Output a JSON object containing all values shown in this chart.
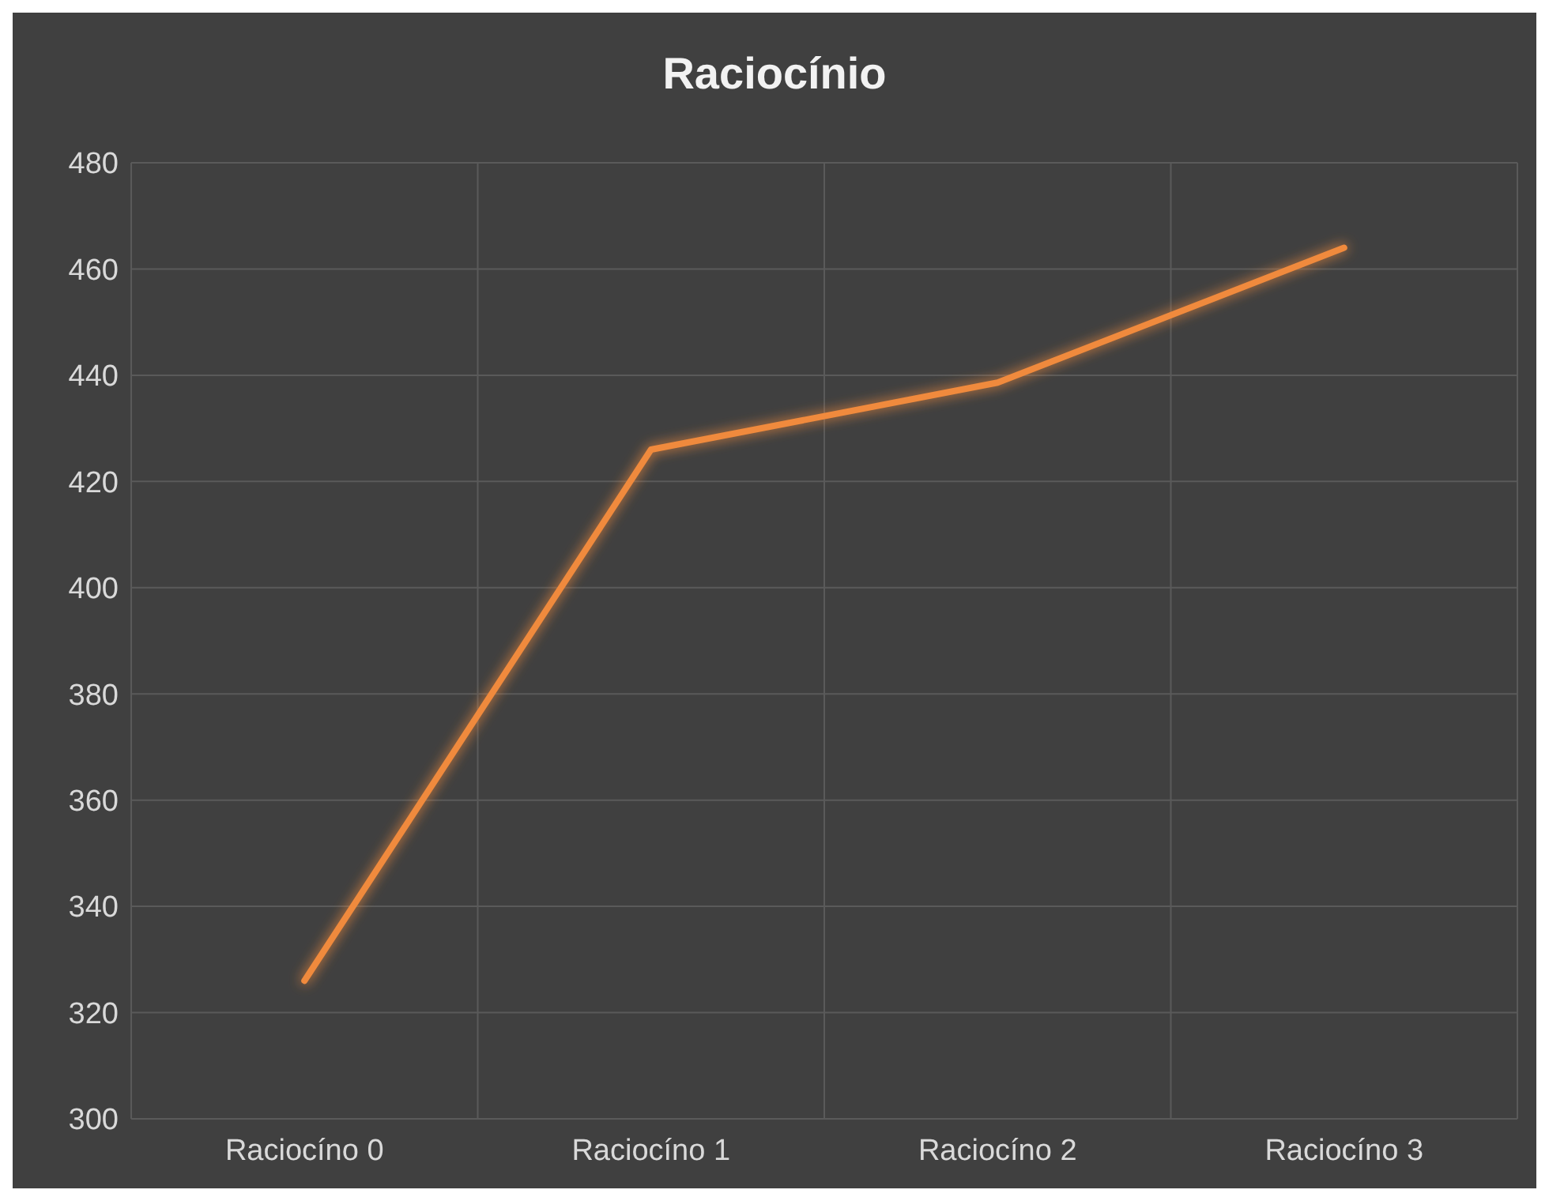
{
  "chart_data": {
    "type": "line",
    "title": "Raciocínio",
    "categories": [
      "Raciocíno 0",
      "Raciocíno 1",
      "Raciocíno 2",
      "Raciocíno 3"
    ],
    "series": [
      {
        "color": "#f08a3c",
        "values": [
          326,
          426,
          438.6,
          464
        ]
      }
    ],
    "ylim": [
      300,
      480
    ],
    "yticks": [
      300,
      320,
      340,
      360,
      380,
      400,
      420,
      440,
      460,
      480
    ],
    "grid": true,
    "marker": "none",
    "line_style": "solid"
  }
}
